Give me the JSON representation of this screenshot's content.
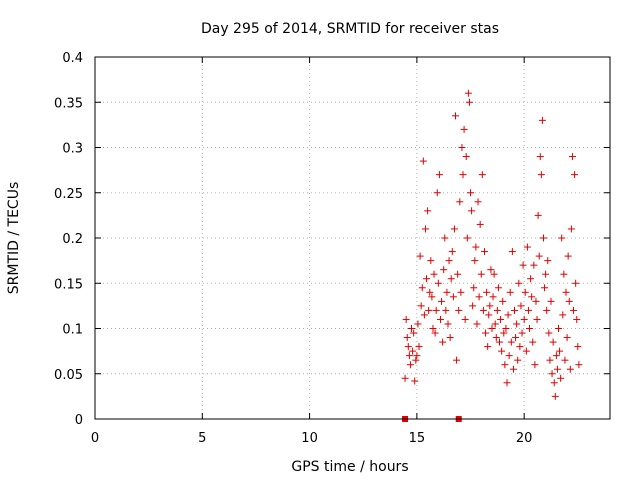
{
  "chart_data": {
    "type": "scatter",
    "title": "Day 295 of 2014, SRMTID for receiver stas",
    "xlabel": "GPS time / hours",
    "ylabel": "SRMTID / TECUs",
    "xlim": [
      0,
      24
    ],
    "ylim": [
      0,
      0.4
    ],
    "xticks": [
      0,
      5,
      10,
      15,
      20
    ],
    "xtick_labels": [
      "0",
      "5",
      "10",
      "15",
      "20"
    ],
    "yticks": [
      0,
      0.05,
      0.1,
      0.15,
      0.2,
      0.25,
      0.3,
      0.35,
      0.4
    ],
    "ytick_labels": [
      "0",
      "0.05",
      "0.1",
      "0.15",
      "0.2",
      "0.25",
      "0.3",
      "0.35",
      "0.4"
    ],
    "grid": true,
    "marker": "+",
    "color": "#e00000",
    "baseline_markers": {
      "description": "square markers on x axis",
      "x": [
        14.45,
        16.95
      ]
    },
    "series": [
      {
        "name": "stas",
        "points": [
          [
            14.45,
            0.045
          ],
          [
            14.5,
            0.11
          ],
          [
            14.55,
            0.09
          ],
          [
            14.6,
            0.08
          ],
          [
            14.65,
            0.07
          ],
          [
            14.7,
            0.06
          ],
          [
            14.75,
            0.1
          ],
          [
            14.8,
            0.075
          ],
          [
            14.85,
            0.095
          ],
          [
            14.9,
            0.042
          ],
          [
            14.95,
            0.065
          ],
          [
            15.0,
            0.07
          ],
          [
            15.05,
            0.105
          ],
          [
            15.1,
            0.08
          ],
          [
            15.15,
            0.18
          ],
          [
            15.2,
            0.125
          ],
          [
            15.25,
            0.145
          ],
          [
            15.3,
            0.285
          ],
          [
            15.35,
            0.115
          ],
          [
            15.4,
            0.21
          ],
          [
            15.45,
            0.155
          ],
          [
            15.5,
            0.23
          ],
          [
            15.55,
            0.12
          ],
          [
            15.6,
            0.14
          ],
          [
            15.65,
            0.175
          ],
          [
            15.7,
            0.135
          ],
          [
            15.75,
            0.1
          ],
          [
            15.8,
            0.16
          ],
          [
            15.85,
            0.095
          ],
          [
            15.9,
            0.12
          ],
          [
            15.95,
            0.25
          ],
          [
            16.0,
            0.15
          ],
          [
            16.05,
            0.27
          ],
          [
            16.1,
            0.11
          ],
          [
            16.15,
            0.13
          ],
          [
            16.2,
            0.085
          ],
          [
            16.25,
            0.165
          ],
          [
            16.3,
            0.2
          ],
          [
            16.35,
            0.12
          ],
          [
            16.4,
            0.14
          ],
          [
            16.45,
            0.105
          ],
          [
            16.5,
            0.175
          ],
          [
            16.55,
            0.09
          ],
          [
            16.6,
            0.155
          ],
          [
            16.65,
            0.185
          ],
          [
            16.7,
            0.135
          ],
          [
            16.75,
            0.21
          ],
          [
            16.8,
            0.335
          ],
          [
            16.85,
            0.065
          ],
          [
            16.9,
            0.16
          ],
          [
            16.95,
            0.12
          ],
          [
            17.0,
            0.24
          ],
          [
            17.05,
            0.14
          ],
          [
            17.1,
            0.3
          ],
          [
            17.15,
            0.27
          ],
          [
            17.2,
            0.32
          ],
          [
            17.25,
            0.11
          ],
          [
            17.3,
            0.29
          ],
          [
            17.35,
            0.2
          ],
          [
            17.4,
            0.36
          ],
          [
            17.45,
            0.35
          ],
          [
            17.5,
            0.25
          ],
          [
            17.55,
            0.23
          ],
          [
            17.6,
            0.125
          ],
          [
            17.65,
            0.145
          ],
          [
            17.7,
            0.175
          ],
          [
            17.75,
            0.19
          ],
          [
            17.8,
            0.105
          ],
          [
            17.85,
            0.24
          ],
          [
            17.9,
            0.135
          ],
          [
            17.95,
            0.215
          ],
          [
            18.0,
            0.16
          ],
          [
            18.05,
            0.27
          ],
          [
            18.1,
            0.12
          ],
          [
            18.15,
            0.185
          ],
          [
            18.2,
            0.095
          ],
          [
            18.25,
            0.14
          ],
          [
            18.3,
            0.08
          ],
          [
            18.35,
            0.115
          ],
          [
            18.4,
            0.125
          ],
          [
            18.45,
            0.165
          ],
          [
            18.5,
            0.1
          ],
          [
            18.55,
            0.135
          ],
          [
            18.6,
            0.16
          ],
          [
            18.65,
            0.105
          ],
          [
            18.7,
            0.09
          ],
          [
            18.75,
            0.12
          ],
          [
            18.8,
            0.145
          ],
          [
            18.85,
            0.085
          ],
          [
            18.9,
            0.11
          ],
          [
            18.95,
            0.075
          ],
          [
            19.0,
            0.13
          ],
          [
            19.05,
            0.095
          ],
          [
            19.1,
            0.06
          ],
          [
            19.15,
            0.1
          ],
          [
            19.2,
            0.04
          ],
          [
            19.25,
            0.115
          ],
          [
            19.3,
            0.07
          ],
          [
            19.35,
            0.14
          ],
          [
            19.4,
            0.085
          ],
          [
            19.45,
            0.185
          ],
          [
            19.5,
            0.055
          ],
          [
            19.55,
            0.12
          ],
          [
            19.6,
            0.09
          ],
          [
            19.65,
            0.105
          ],
          [
            19.7,
            0.065
          ],
          [
            19.75,
            0.15
          ],
          [
            19.8,
            0.08
          ],
          [
            19.85,
            0.125
          ],
          [
            19.9,
            0.095
          ],
          [
            19.95,
            0.17
          ],
          [
            20.0,
            0.11
          ],
          [
            20.05,
            0.14
          ],
          [
            20.1,
            0.075
          ],
          [
            20.15,
            0.19
          ],
          [
            20.2,
            0.12
          ],
          [
            20.25,
            0.1
          ],
          [
            20.3,
            0.155
          ],
          [
            20.35,
            0.135
          ],
          [
            20.4,
            0.085
          ],
          [
            20.45,
            0.17
          ],
          [
            20.5,
            0.06
          ],
          [
            20.55,
            0.13
          ],
          [
            20.6,
            0.11
          ],
          [
            20.65,
            0.225
          ],
          [
            20.7,
            0.18
          ],
          [
            20.75,
            0.29
          ],
          [
            20.8,
            0.27
          ],
          [
            20.85,
            0.33
          ],
          [
            20.9,
            0.2
          ],
          [
            20.95,
            0.145
          ],
          [
            21.0,
            0.16
          ],
          [
            21.05,
            0.12
          ],
          [
            21.1,
            0.175
          ],
          [
            21.15,
            0.095
          ],
          [
            21.2,
            0.065
          ],
          [
            21.25,
            0.13
          ],
          [
            21.3,
            0.05
          ],
          [
            21.35,
            0.085
          ],
          [
            21.4,
            0.04
          ],
          [
            21.45,
            0.025
          ],
          [
            21.5,
            0.07
          ],
          [
            21.55,
            0.055
          ],
          [
            21.6,
            0.1
          ],
          [
            21.65,
            0.075
          ],
          [
            21.7,
            0.045
          ],
          [
            21.75,
            0.2
          ],
          [
            21.8,
            0.115
          ],
          [
            21.85,
            0.16
          ],
          [
            21.9,
            0.065
          ],
          [
            21.95,
            0.14
          ],
          [
            22.0,
            0.09
          ],
          [
            22.05,
            0.18
          ],
          [
            22.1,
            0.13
          ],
          [
            22.15,
            0.055
          ],
          [
            22.2,
            0.21
          ],
          [
            22.25,
            0.29
          ],
          [
            22.3,
            0.12
          ],
          [
            22.35,
            0.27
          ],
          [
            22.4,
            0.15
          ],
          [
            22.45,
            0.11
          ],
          [
            22.5,
            0.08
          ],
          [
            22.55,
            0.06
          ]
        ]
      }
    ]
  }
}
